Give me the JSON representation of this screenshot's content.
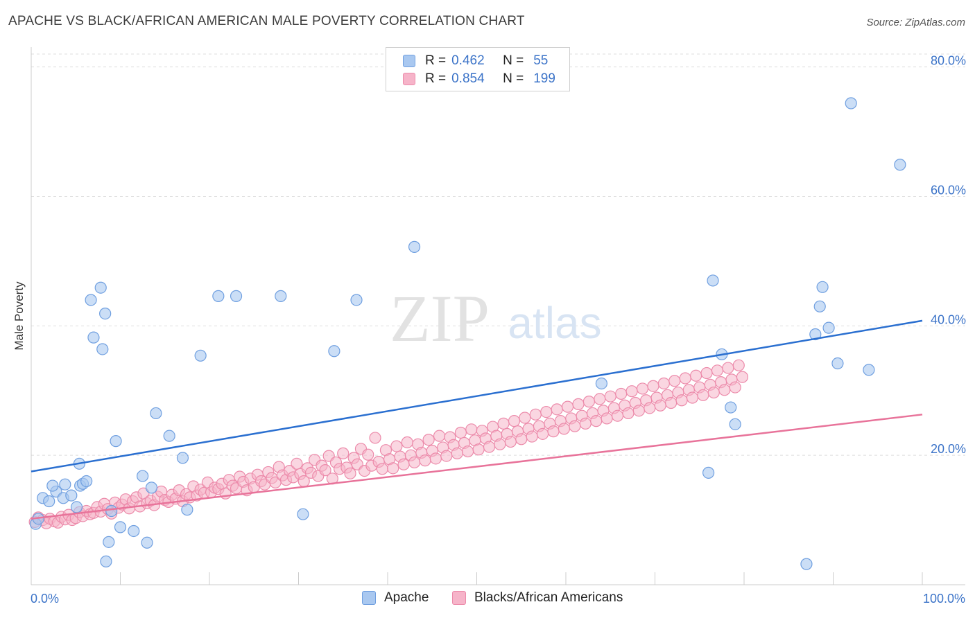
{
  "header": {
    "title": "APACHE VS BLACK/AFRICAN AMERICAN MALE POVERTY CORRELATION CHART",
    "source": "Source: ZipAtlas.com"
  },
  "watermark": {
    "zip": "ZIP",
    "atlas": "atlas"
  },
  "legend": {
    "rows": [
      {
        "r_label": "R =",
        "r_value": "0.462",
        "n_label": "N =",
        "n_value": "55"
      },
      {
        "r_label": "R =",
        "r_value": "0.854",
        "n_label": "N =",
        "n_value": "199"
      }
    ]
  },
  "bottom_legend": {
    "apache": "Apache",
    "black": "Blacks/African Americans"
  },
  "colors": {
    "apache_fill": "#a9c8f0",
    "apache_stroke": "#6f9fe0",
    "apache_line": "#2a6fd0",
    "black_fill": "#f6b4c9",
    "black_stroke": "#ec8aaa",
    "black_line": "#e8739a",
    "tick": "#3b73c8",
    "grid": "#dddddd"
  },
  "chart_data": {
    "type": "scatter",
    "title": "APACHE VS BLACK/AFRICAN AMERICAN MALE POVERTY CORRELATION CHART",
    "xlabel": "",
    "ylabel": "Male Poverty",
    "xlim": [
      0,
      100
    ],
    "ylim": [
      0,
      82
    ],
    "x_tick_labels": [
      "0.0%",
      "100.0%"
    ],
    "y_ticks": [
      20,
      40,
      60,
      80
    ],
    "y_tick_labels": [
      "20.0%",
      "40.0%",
      "60.0%",
      "80.0%"
    ],
    "grid": true,
    "series": [
      {
        "name": "Apache",
        "r": 0.462,
        "n": 55,
        "trend": {
          "x": [
            0,
            100
          ],
          "y": [
            17.5,
            40.8
          ]
        },
        "points": [
          [
            0.5,
            9.4
          ],
          [
            0.8,
            10.2
          ],
          [
            1.3,
            13.4
          ],
          [
            2.0,
            12.9
          ],
          [
            2.8,
            14.4
          ],
          [
            2.4,
            15.3
          ],
          [
            3.6,
            13.4
          ],
          [
            3.8,
            15.5
          ],
          [
            4.5,
            13.8
          ],
          [
            5.1,
            12.0
          ],
          [
            5.4,
            18.7
          ],
          [
            5.5,
            15.3
          ],
          [
            5.8,
            15.6
          ],
          [
            6.2,
            16.0
          ],
          [
            6.7,
            44.0
          ],
          [
            7.0,
            38.2
          ],
          [
            7.8,
            45.9
          ],
          [
            8.0,
            36.4
          ],
          [
            8.3,
            41.9
          ],
          [
            8.4,
            3.6
          ],
          [
            8.7,
            6.6
          ],
          [
            9.0,
            11.4
          ],
          [
            9.5,
            22.2
          ],
          [
            10.0,
            8.9
          ],
          [
            11.5,
            8.3
          ],
          [
            12.5,
            16.8
          ],
          [
            13.0,
            6.5
          ],
          [
            13.5,
            15.0
          ],
          [
            14.0,
            26.5
          ],
          [
            15.5,
            23.0
          ],
          [
            17.0,
            19.6
          ],
          [
            17.5,
            11.6
          ],
          [
            19.0,
            35.4
          ],
          [
            21.0,
            44.6
          ],
          [
            23.0,
            44.6
          ],
          [
            28.0,
            44.6
          ],
          [
            30.5,
            10.9
          ],
          [
            34.0,
            36.1
          ],
          [
            36.5,
            44.0
          ],
          [
            43.0,
            52.2
          ],
          [
            64.0,
            31.1
          ],
          [
            76.0,
            17.3
          ],
          [
            76.5,
            47.0
          ],
          [
            77.5,
            35.6
          ],
          [
            78.5,
            27.4
          ],
          [
            79.0,
            24.8
          ],
          [
            87.0,
            3.2
          ],
          [
            88.0,
            38.7
          ],
          [
            88.5,
            43.0
          ],
          [
            88.8,
            46.0
          ],
          [
            89.5,
            39.7
          ],
          [
            90.5,
            34.2
          ],
          [
            92.0,
            74.4
          ],
          [
            94.0,
            33.2
          ],
          [
            97.5,
            64.9
          ]
        ]
      },
      {
        "name": "Blacks/African Americans",
        "r": 0.854,
        "n": 199,
        "trend": {
          "x": [
            0,
            100
          ],
          "y": [
            10.2,
            26.3
          ]
        },
        "points": [
          [
            0.4,
            9.7
          ],
          [
            0.8,
            10.4
          ],
          [
            1.3,
            10.0
          ],
          [
            1.7,
            9.5
          ],
          [
            2.1,
            10.2
          ],
          [
            2.6,
            9.8
          ],
          [
            3.0,
            9.6
          ],
          [
            3.4,
            10.5
          ],
          [
            3.8,
            10.1
          ],
          [
            4.2,
            10.8
          ],
          [
            4.6,
            10.0
          ],
          [
            5.0,
            10.3
          ],
          [
            5.4,
            11.2
          ],
          [
            5.8,
            10.6
          ],
          [
            6.2,
            11.4
          ],
          [
            6.6,
            10.9
          ],
          [
            7.0,
            11.1
          ],
          [
            7.4,
            12.0
          ],
          [
            7.8,
            11.3
          ],
          [
            8.2,
            12.5
          ],
          [
            8.6,
            11.7
          ],
          [
            9.0,
            11.0
          ],
          [
            9.4,
            12.7
          ],
          [
            9.8,
            11.9
          ],
          [
            10.2,
            12.4
          ],
          [
            10.6,
            13.2
          ],
          [
            11.0,
            11.8
          ],
          [
            11.4,
            12.9
          ],
          [
            11.8,
            13.5
          ],
          [
            12.2,
            12.1
          ],
          [
            12.6,
            14.1
          ],
          [
            13.0,
            12.6
          ],
          [
            13.4,
            13.0
          ],
          [
            13.8,
            12.3
          ],
          [
            14.2,
            13.6
          ],
          [
            14.6,
            14.4
          ],
          [
            15.0,
            13.1
          ],
          [
            15.4,
            12.8
          ],
          [
            15.8,
            13.9
          ],
          [
            16.2,
            13.3
          ],
          [
            16.6,
            14.6
          ],
          [
            17.0,
            12.9
          ],
          [
            17.4,
            14.0
          ],
          [
            17.8,
            13.5
          ],
          [
            18.2,
            15.2
          ],
          [
            18.6,
            13.8
          ],
          [
            19.0,
            14.7
          ],
          [
            19.4,
            14.2
          ],
          [
            19.8,
            15.8
          ],
          [
            20.2,
            14.3
          ],
          [
            20.6,
            15.0
          ],
          [
            21.0,
            14.8
          ],
          [
            21.4,
            15.6
          ],
          [
            21.8,
            14.1
          ],
          [
            22.2,
            16.2
          ],
          [
            22.6,
            15.3
          ],
          [
            23.0,
            14.9
          ],
          [
            23.4,
            16.7
          ],
          [
            23.8,
            15.9
          ],
          [
            24.2,
            14.6
          ],
          [
            24.6,
            16.4
          ],
          [
            25.0,
            15.1
          ],
          [
            25.4,
            17.0
          ],
          [
            25.8,
            16.0
          ],
          [
            26.2,
            15.5
          ],
          [
            26.6,
            17.4
          ],
          [
            27.0,
            16.5
          ],
          [
            27.4,
            15.8
          ],
          [
            27.8,
            18.2
          ],
          [
            28.2,
            16.9
          ],
          [
            28.6,
            16.2
          ],
          [
            29.0,
            17.6
          ],
          [
            29.4,
            16.6
          ],
          [
            29.8,
            18.7
          ],
          [
            30.2,
            17.1
          ],
          [
            30.6,
            16.0
          ],
          [
            31.0,
            18.0
          ],
          [
            31.4,
            17.3
          ],
          [
            31.8,
            19.3
          ],
          [
            32.2,
            16.8
          ],
          [
            32.6,
            18.4
          ],
          [
            33.0,
            17.7
          ],
          [
            33.4,
            19.9
          ],
          [
            33.8,
            16.4
          ],
          [
            34.2,
            18.9
          ],
          [
            34.6,
            17.9
          ],
          [
            35.0,
            20.3
          ],
          [
            35.4,
            18.1
          ],
          [
            35.8,
            17.2
          ],
          [
            36.2,
            19.6
          ],
          [
            36.6,
            18.6
          ],
          [
            37.0,
            21.0
          ],
          [
            37.4,
            17.6
          ],
          [
            37.8,
            20.1
          ],
          [
            38.2,
            18.4
          ],
          [
            38.6,
            22.7
          ],
          [
            39.0,
            19.0
          ],
          [
            39.4,
            17.9
          ],
          [
            39.8,
            20.8
          ],
          [
            40.2,
            19.4
          ],
          [
            40.6,
            18.0
          ],
          [
            41.0,
            21.4
          ],
          [
            41.4,
            19.8
          ],
          [
            41.8,
            18.6
          ],
          [
            42.2,
            22.0
          ],
          [
            42.6,
            20.0
          ],
          [
            43.0,
            18.9
          ],
          [
            43.4,
            21.7
          ],
          [
            43.8,
            20.4
          ],
          [
            44.2,
            19.2
          ],
          [
            44.6,
            22.4
          ],
          [
            45.0,
            20.7
          ],
          [
            45.4,
            19.5
          ],
          [
            45.8,
            23.0
          ],
          [
            46.2,
            21.2
          ],
          [
            46.6,
            19.9
          ],
          [
            47.0,
            22.8
          ],
          [
            47.4,
            21.6
          ],
          [
            47.8,
            20.3
          ],
          [
            48.2,
            23.5
          ],
          [
            48.6,
            21.9
          ],
          [
            49.0,
            20.6
          ],
          [
            49.4,
            24.0
          ],
          [
            49.8,
            22.3
          ],
          [
            50.2,
            20.9
          ],
          [
            50.6,
            23.8
          ],
          [
            51.0,
            22.6
          ],
          [
            51.4,
            21.3
          ],
          [
            51.8,
            24.4
          ],
          [
            52.2,
            23.0
          ],
          [
            52.6,
            21.7
          ],
          [
            53.0,
            24.9
          ],
          [
            53.4,
            23.3
          ],
          [
            53.8,
            22.1
          ],
          [
            54.2,
            25.3
          ],
          [
            54.6,
            23.7
          ],
          [
            55.0,
            22.5
          ],
          [
            55.4,
            25.8
          ],
          [
            55.8,
            24.1
          ],
          [
            56.2,
            22.9
          ],
          [
            56.6,
            26.3
          ],
          [
            57.0,
            24.5
          ],
          [
            57.4,
            23.3
          ],
          [
            57.8,
            26.7
          ],
          [
            58.2,
            24.9
          ],
          [
            58.6,
            23.7
          ],
          [
            59.0,
            27.1
          ],
          [
            59.4,
            25.3
          ],
          [
            59.8,
            24.1
          ],
          [
            60.2,
            27.5
          ],
          [
            60.6,
            25.7
          ],
          [
            61.0,
            24.5
          ],
          [
            61.4,
            27.9
          ],
          [
            61.8,
            26.1
          ],
          [
            62.2,
            24.9
          ],
          [
            62.6,
            28.3
          ],
          [
            63.0,
            26.5
          ],
          [
            63.4,
            25.3
          ],
          [
            63.8,
            28.7
          ],
          [
            64.2,
            26.9
          ],
          [
            64.6,
            25.7
          ],
          [
            65.0,
            29.1
          ],
          [
            65.4,
            27.3
          ],
          [
            65.8,
            26.1
          ],
          [
            66.2,
            29.5
          ],
          [
            66.6,
            27.7
          ],
          [
            67.0,
            26.5
          ],
          [
            67.4,
            29.9
          ],
          [
            67.8,
            28.1
          ],
          [
            68.2,
            26.9
          ],
          [
            68.6,
            30.3
          ],
          [
            69.0,
            28.5
          ],
          [
            69.4,
            27.3
          ],
          [
            69.8,
            30.7
          ],
          [
            70.2,
            28.9
          ],
          [
            70.6,
            27.7
          ],
          [
            71.0,
            31.1
          ],
          [
            71.4,
            29.3
          ],
          [
            71.8,
            28.1
          ],
          [
            72.2,
            31.5
          ],
          [
            72.6,
            29.7
          ],
          [
            73.0,
            28.5
          ],
          [
            73.4,
            31.9
          ],
          [
            73.8,
            30.1
          ],
          [
            74.2,
            28.9
          ],
          [
            74.6,
            32.3
          ],
          [
            75.0,
            30.5
          ],
          [
            75.4,
            29.3
          ],
          [
            75.8,
            32.7
          ],
          [
            76.2,
            30.9
          ],
          [
            76.6,
            29.7
          ],
          [
            77.0,
            33.1
          ],
          [
            77.4,
            31.3
          ],
          [
            77.8,
            30.1
          ],
          [
            78.2,
            33.5
          ],
          [
            78.6,
            31.7
          ],
          [
            79.0,
            30.5
          ],
          [
            79.4,
            33.9
          ],
          [
            79.8,
            32.1
          ]
        ]
      }
    ]
  }
}
